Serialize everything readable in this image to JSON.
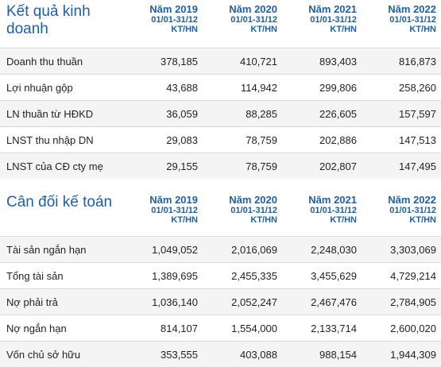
{
  "income": {
    "title": "Kết quả kinh doanh",
    "columns": [
      {
        "year": "Năm 2019",
        "period": "01/01-31/12",
        "unit": "KT/HN"
      },
      {
        "year": "Năm 2020",
        "period": "01/01-31/12",
        "unit": "KT/HN"
      },
      {
        "year": "Năm 2021",
        "period": "01/01-31/12",
        "unit": "KT/HN"
      },
      {
        "year": "Năm 2022",
        "period": "01/01-31/12",
        "unit": "KT/HN"
      }
    ],
    "rows": [
      {
        "label": "Doanh thu thuần",
        "values": [
          "378,185",
          "410,721",
          "893,403",
          "816,873"
        ]
      },
      {
        "label": "Lợi nhuận gộp",
        "values": [
          "43,688",
          "114,942",
          "299,806",
          "258,260"
        ]
      },
      {
        "label": "LN thuần từ HĐKD",
        "values": [
          "36,059",
          "88,285",
          "226,605",
          "157,597"
        ]
      },
      {
        "label": "LNST thu nhập DN",
        "values": [
          "29,083",
          "78,759",
          "202,886",
          "147,513"
        ]
      },
      {
        "label": "LNST của CĐ cty mẹ",
        "values": [
          "29,155",
          "78,759",
          "202,807",
          "147,495"
        ]
      }
    ]
  },
  "balance": {
    "title": "Cân đối kế toán",
    "columns": [
      {
        "year": "Năm 2019",
        "period": "01/01-31/12",
        "unit": "KT/HN"
      },
      {
        "year": "Năm 2020",
        "period": "01/01-31/12",
        "unit": "KT/HN"
      },
      {
        "year": "Năm 2021",
        "period": "01/01-31/12",
        "unit": "KT/HN"
      },
      {
        "year": "Năm 2022",
        "period": "01/01-31/12",
        "unit": "KT/HN"
      }
    ],
    "rows": [
      {
        "label": "Tài sản ngắn hạn",
        "values": [
          "1,049,052",
          "2,016,069",
          "2,248,030",
          "3,303,069"
        ]
      },
      {
        "label": "Tổng tài sản",
        "values": [
          "1,389,695",
          "2,455,335",
          "3,455,629",
          "4,729,214"
        ]
      },
      {
        "label": "Nợ phải trả",
        "values": [
          "1,036,140",
          "2,052,247",
          "2,467,476",
          "2,784,905"
        ]
      },
      {
        "label": "Nợ ngắn hạn",
        "values": [
          "814,107",
          "1,554,000",
          "2,133,714",
          "2,600,020"
        ]
      },
      {
        "label": "Vốn chủ sở hữu",
        "values": [
          "353,555",
          "403,088",
          "988,154",
          "1,944,309"
        ]
      }
    ]
  },
  "colors": {
    "accent": "#1f5fa8",
    "row_alt": "#f4f4f4",
    "border": "#d9d9d9"
  }
}
